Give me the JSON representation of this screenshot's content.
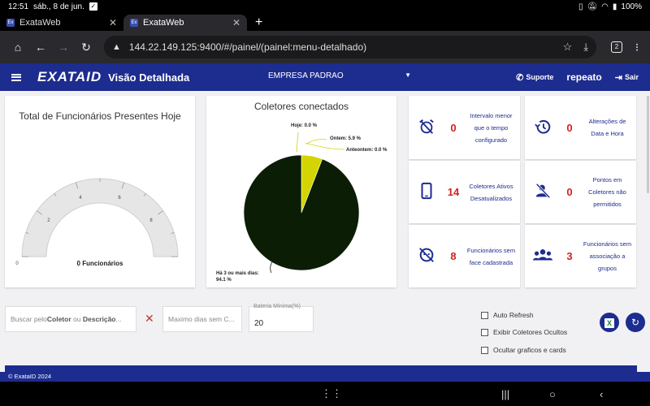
{
  "status": {
    "time": "12:51",
    "date": "sáb., 8 de jun.",
    "battery": "100%"
  },
  "tabs": [
    {
      "favicon": "Ex",
      "title": "ExataWeb"
    },
    {
      "favicon": "Ex",
      "title": "ExataWeb"
    }
  ],
  "browser": {
    "url": "144.22.149.125:9400/#/painel/(painel:menu-detalhado)",
    "tab_count": "2"
  },
  "header": {
    "logo_main": "EXATA",
    "logo_id": "ID",
    "title": "Visão Detalhada",
    "company": "EMPRESA PADRAO",
    "support": "Suporte",
    "user": "repeato",
    "logout": "Sair"
  },
  "gauge": {
    "title": "Total de Funcionários Presentes Hoje",
    "ticks": [
      "0",
      "2",
      "4",
      "6",
      "8"
    ],
    "value": 0,
    "max": 10,
    "caption": "0 Funcionários"
  },
  "pie": {
    "title": "Coletores conectados",
    "labels": {
      "hoje": "Hoje: 0.0 %",
      "ontem": "Ontem: 5.9 %",
      "anteontem": "Anteontem: 0.0 %",
      "mais3a": "Há 3 ou mais dias:",
      "mais3b": "94.1 %"
    }
  },
  "chart_data": {
    "type": "pie",
    "title": "Coletores conectados",
    "slices": [
      {
        "label": "Hoje",
        "value": 0.0,
        "color": "#c8d000"
      },
      {
        "label": "Ontem",
        "value": 5.9,
        "color": "#d4d400"
      },
      {
        "label": "Anteontem",
        "value": 0.0,
        "color": "#c8d000"
      },
      {
        "label": "Há 3 ou mais dias",
        "value": 94.1,
        "color": "#0b1e05"
      }
    ]
  },
  "cards": [
    {
      "icon": "alarm-off-icon",
      "value": "0",
      "label": "Intervalo menor que o tempo configurado"
    },
    {
      "icon": "history-icon",
      "value": "0",
      "label": "Alterações de Data e Hora"
    },
    {
      "icon": "phone-icon",
      "value": "14",
      "label": "Coletores Ativos Desatualizados"
    },
    {
      "icon": "location-off-icon",
      "value": "0",
      "label": "Pontos em Coletores não permitidos"
    },
    {
      "icon": "face-off-icon",
      "value": "8",
      "label": "Funcionários sem face cadastrada"
    },
    {
      "icon": "group-icon",
      "value": "3",
      "label": "Funcionários sem associação a grupos"
    }
  ],
  "filters": {
    "search_prefix": "Buscar pelo ",
    "search_bold1": "Coletor",
    "search_mid": " ou ",
    "search_bold2": "Descrição",
    "search_suffix": "...",
    "max_days_placeholder": "Maximo dias sem C...",
    "battery_label": "Bateria Mínima(%)",
    "battery_value": "20"
  },
  "options": {
    "auto_refresh": "Auto Refresh",
    "show_hidden": "Exibir Coletores Ocultos",
    "hide_charts": "Ocultar graficos e cards"
  },
  "footer": "© ExataID 2024"
}
